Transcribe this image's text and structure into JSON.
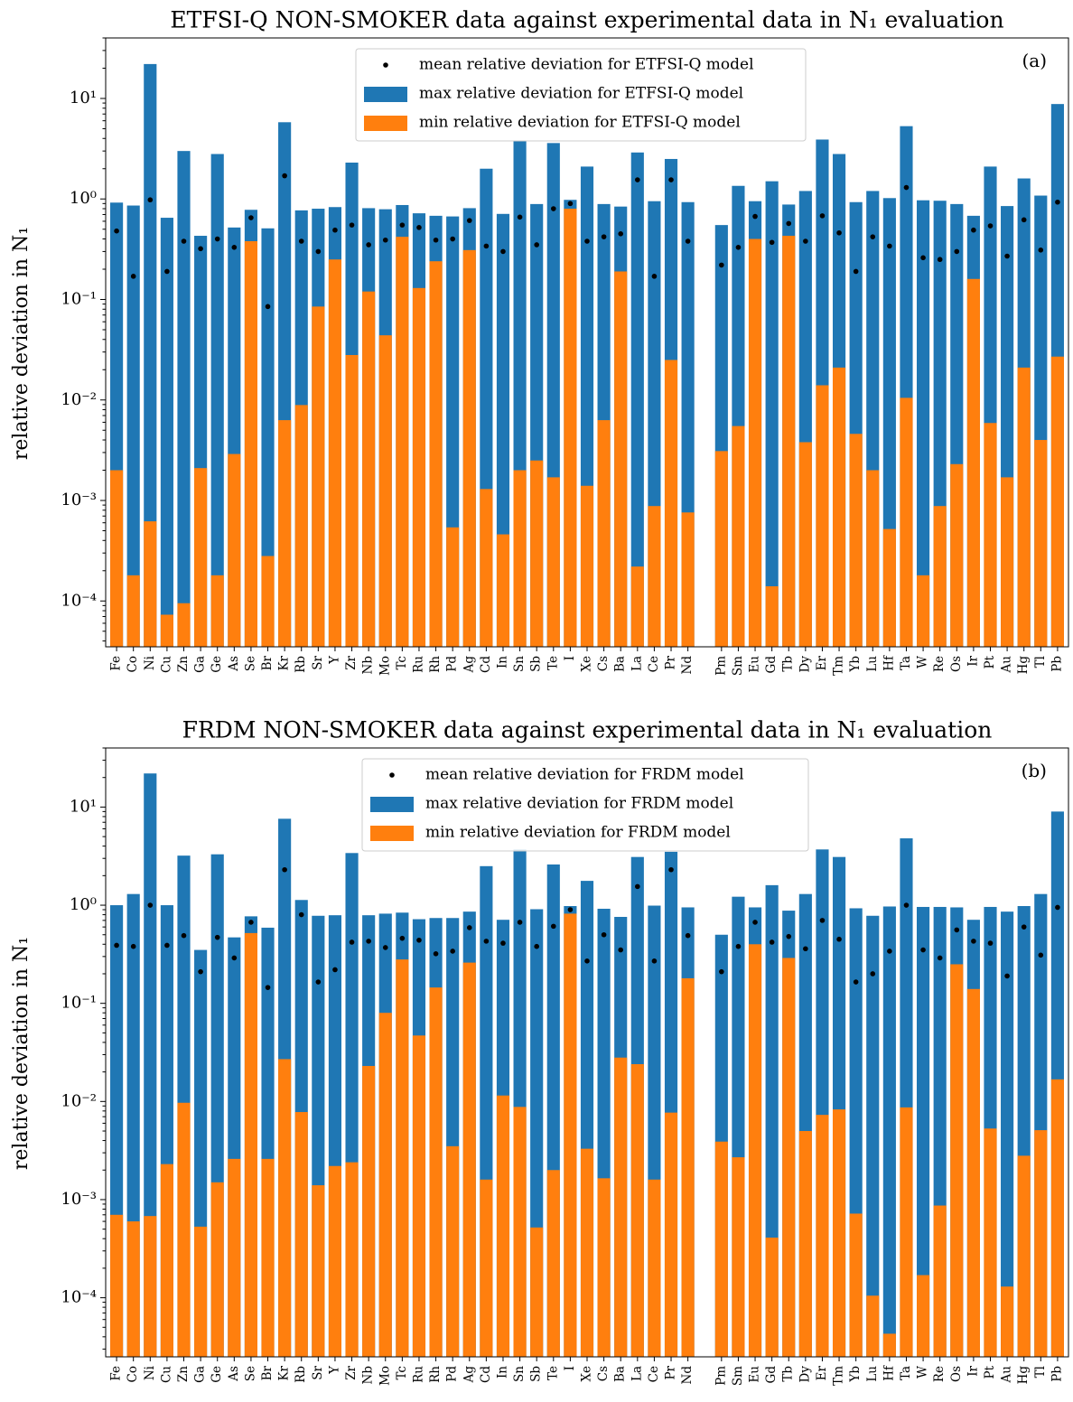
{
  "chart_data": [
    {
      "type": "bar",
      "title": "ETFSI-Q NON-SMOKER data against experimental data in N₁ evaluation",
      "panel_label": "(a)",
      "xlabel": "",
      "ylabel": "relative deviation in N₁",
      "yscale": "log",
      "ylim": [
        3.5e-05,
        40
      ],
      "ytick_labels": [
        "10⁻⁴",
        "10⁻³",
        "10⁻²",
        "10⁻¹",
        "10⁰",
        "10¹"
      ],
      "legend_position": "top-center",
      "gap_after_index": 34,
      "categories": [
        "Fe",
        "Co",
        "Ni",
        "Cu",
        "Zn",
        "Ga",
        "Ge",
        "As",
        "Se",
        "Br",
        "Kr",
        "Rb",
        "Sr",
        "Y",
        "Zr",
        "Nb",
        "Mo",
        "Tc",
        "Ru",
        "Rh",
        "Pd",
        "Ag",
        "Cd",
        "In",
        "Sn",
        "Sb",
        "Te",
        "I",
        "Xe",
        "Cs",
        "Ba",
        "La",
        "Ce",
        "Pr",
        "Nd",
        "Pm",
        "Sm",
        "Eu",
        "Gd",
        "Tb",
        "Dy",
        "Er",
        "Tm",
        "Yb",
        "Lu",
        "Hf",
        "Ta",
        "W",
        "Re",
        "Os",
        "Ir",
        "Pt",
        "Au",
        "Hg",
        "Tl",
        "Pb"
      ],
      "series": [
        {
          "name": "max relative deviation for ETFSI-Q model",
          "color": "#1f77b4",
          "values": [
            0.92,
            0.86,
            22,
            0.65,
            3.0,
            0.43,
            2.8,
            0.52,
            0.78,
            0.51,
            5.8,
            0.77,
            0.8,
            0.83,
            2.3,
            0.81,
            0.79,
            0.87,
            0.72,
            0.68,
            0.67,
            0.81,
            2.0,
            0.71,
            3.8,
            0.89,
            3.6,
            0.98,
            2.1,
            0.89,
            0.84,
            2.9,
            0.95,
            2.5,
            0.93,
            0.55,
            1.35,
            0.95,
            1.5,
            0.88,
            1.2,
            3.9,
            2.8,
            0.93,
            1.2,
            1.02,
            5.3,
            0.97,
            0.96,
            0.89,
            0.68,
            2.1,
            0.85,
            1.6,
            1.08,
            8.8
          ]
        },
        {
          "name": "min relative deviation for ETFSI-Q model",
          "color": "#ff7f0e",
          "values": [
            0.002,
            0.00018,
            0.00062,
            7.3e-05,
            9.5e-05,
            0.0021,
            0.00018,
            0.0029,
            0.38,
            0.00028,
            0.0063,
            0.0089,
            0.085,
            0.25,
            0.028,
            0.12,
            0.044,
            0.42,
            0.13,
            0.24,
            0.00054,
            0.31,
            0.0013,
            0.00046,
            0.002,
            0.0025,
            0.0017,
            0.8,
            0.0014,
            0.0063,
            0.19,
            0.00022,
            0.00088,
            0.025,
            0.00076,
            0.0031,
            0.0055,
            0.4,
            0.00014,
            0.43,
            0.0038,
            0.014,
            0.021,
            0.0046,
            0.002,
            0.00052,
            0.0105,
            0.00018,
            0.00088,
            0.0023,
            0.16,
            0.0059,
            0.0017,
            0.021,
            0.004,
            0.027
          ]
        },
        {
          "name": "mean relative deviation for ETFSI-Q model",
          "color": "#000000",
          "values": [
            0.48,
            0.17,
            0.98,
            0.19,
            0.38,
            0.32,
            0.4,
            0.33,
            0.65,
            0.085,
            1.7,
            0.38,
            0.3,
            0.49,
            0.55,
            0.35,
            0.39,
            0.55,
            0.52,
            0.39,
            0.4,
            0.61,
            0.34,
            0.3,
            0.66,
            0.35,
            0.8,
            0.9,
            0.38,
            0.42,
            0.45,
            1.55,
            0.17,
            1.55,
            0.38,
            0.22,
            0.33,
            0.67,
            0.37,
            0.57,
            0.38,
            0.68,
            0.46,
            0.19,
            0.42,
            0.34,
            1.3,
            0.26,
            0.25,
            0.3,
            0.49,
            0.54,
            0.27,
            0.62,
            0.31,
            0.93
          ]
        }
      ]
    },
    {
      "type": "bar",
      "title": "FRDM NON-SMOKER data against experimental data in N₁ evaluation",
      "panel_label": "(b)",
      "xlabel": "",
      "ylabel": "relative deviation in N₁",
      "yscale": "log",
      "ylim": [
        2.5e-05,
        40
      ],
      "ytick_labels": [
        "10⁻⁴",
        "10⁻³",
        "10⁻²",
        "10⁻¹",
        "10⁰",
        "10¹"
      ],
      "legend_position": "top-center",
      "gap_after_index": 34,
      "categories": [
        "Fe",
        "Co",
        "Ni",
        "Cu",
        "Zn",
        "Ga",
        "Ge",
        "As",
        "Se",
        "Br",
        "Kr",
        "Rb",
        "Sr",
        "Y",
        "Zr",
        "Nb",
        "Mo",
        "Tc",
        "Ru",
        "Rh",
        "Pd",
        "Ag",
        "Cd",
        "In",
        "Sn",
        "Sb",
        "Te",
        "I",
        "Xe",
        "Cs",
        "Ba",
        "La",
        "Ce",
        "Pr",
        "Nd",
        "Pm",
        "Sm",
        "Eu",
        "Gd",
        "Tb",
        "Dy",
        "Er",
        "Tm",
        "Yb",
        "Lu",
        "Hf",
        "Ta",
        "W",
        "Re",
        "Os",
        "Ir",
        "Pt",
        "Au",
        "Hg",
        "Tl",
        "Pb"
      ],
      "series": [
        {
          "name": "max relative deviation for FRDM model",
          "color": "#1f77b4",
          "values": [
            1.0,
            1.3,
            22,
            1.0,
            3.2,
            0.35,
            3.3,
            0.47,
            0.77,
            0.59,
            7.6,
            1.13,
            0.78,
            0.79,
            3.4,
            0.79,
            0.82,
            0.84,
            0.72,
            0.74,
            0.74,
            0.86,
            2.5,
            0.71,
            3.7,
            0.91,
            2.6,
            0.98,
            1.77,
            0.92,
            0.76,
            3.1,
            0.99,
            3.5,
            0.95,
            0.5,
            1.22,
            0.95,
            1.6,
            0.88,
            1.3,
            3.7,
            3.1,
            0.93,
            0.78,
            0.97,
            4.8,
            0.96,
            0.96,
            0.95,
            0.71,
            0.96,
            0.86,
            0.98,
            1.3,
            9.0
          ]
        },
        {
          "name": "min relative deviation for FRDM model",
          "color": "#ff7f0e",
          "values": [
            0.0007,
            0.0006,
            0.00068,
            0.0023,
            0.0097,
            0.00053,
            0.0015,
            0.0026,
            0.52,
            0.0026,
            0.027,
            0.0078,
            0.0014,
            0.0022,
            0.0024,
            0.023,
            0.08,
            0.28,
            0.047,
            0.145,
            0.0035,
            0.26,
            0.0016,
            0.0115,
            0.0088,
            0.00052,
            0.002,
            0.82,
            0.0033,
            0.00165,
            0.028,
            0.024,
            0.0016,
            0.0077,
            0.18,
            0.0039,
            0.0027,
            0.4,
            0.00041,
            0.29,
            0.005,
            0.0073,
            0.0083,
            0.00072,
            0.000105,
            4.3e-05,
            0.0087,
            0.00017,
            0.00087,
            0.25,
            0.14,
            0.0053,
            0.00013,
            0.0028,
            0.0051,
            0.0168
          ]
        },
        {
          "name": "mean relative deviation for FRDM model",
          "color": "#000000",
          "values": [
            0.39,
            0.38,
            1.0,
            0.39,
            0.49,
            0.21,
            0.47,
            0.29,
            0.67,
            0.145,
            2.3,
            0.8,
            0.165,
            0.22,
            0.42,
            0.43,
            0.37,
            0.46,
            0.44,
            0.32,
            0.34,
            0.59,
            0.43,
            0.41,
            0.67,
            0.38,
            0.61,
            0.9,
            0.27,
            0.5,
            0.35,
            1.55,
            0.27,
            2.3,
            0.49,
            0.21,
            0.38,
            0.67,
            0.42,
            0.48,
            0.36,
            0.7,
            0.45,
            0.165,
            0.2,
            0.34,
            1.0,
            0.35,
            0.29,
            0.56,
            0.43,
            0.41,
            0.19,
            0.6,
            0.31,
            0.95
          ]
        }
      ]
    }
  ]
}
